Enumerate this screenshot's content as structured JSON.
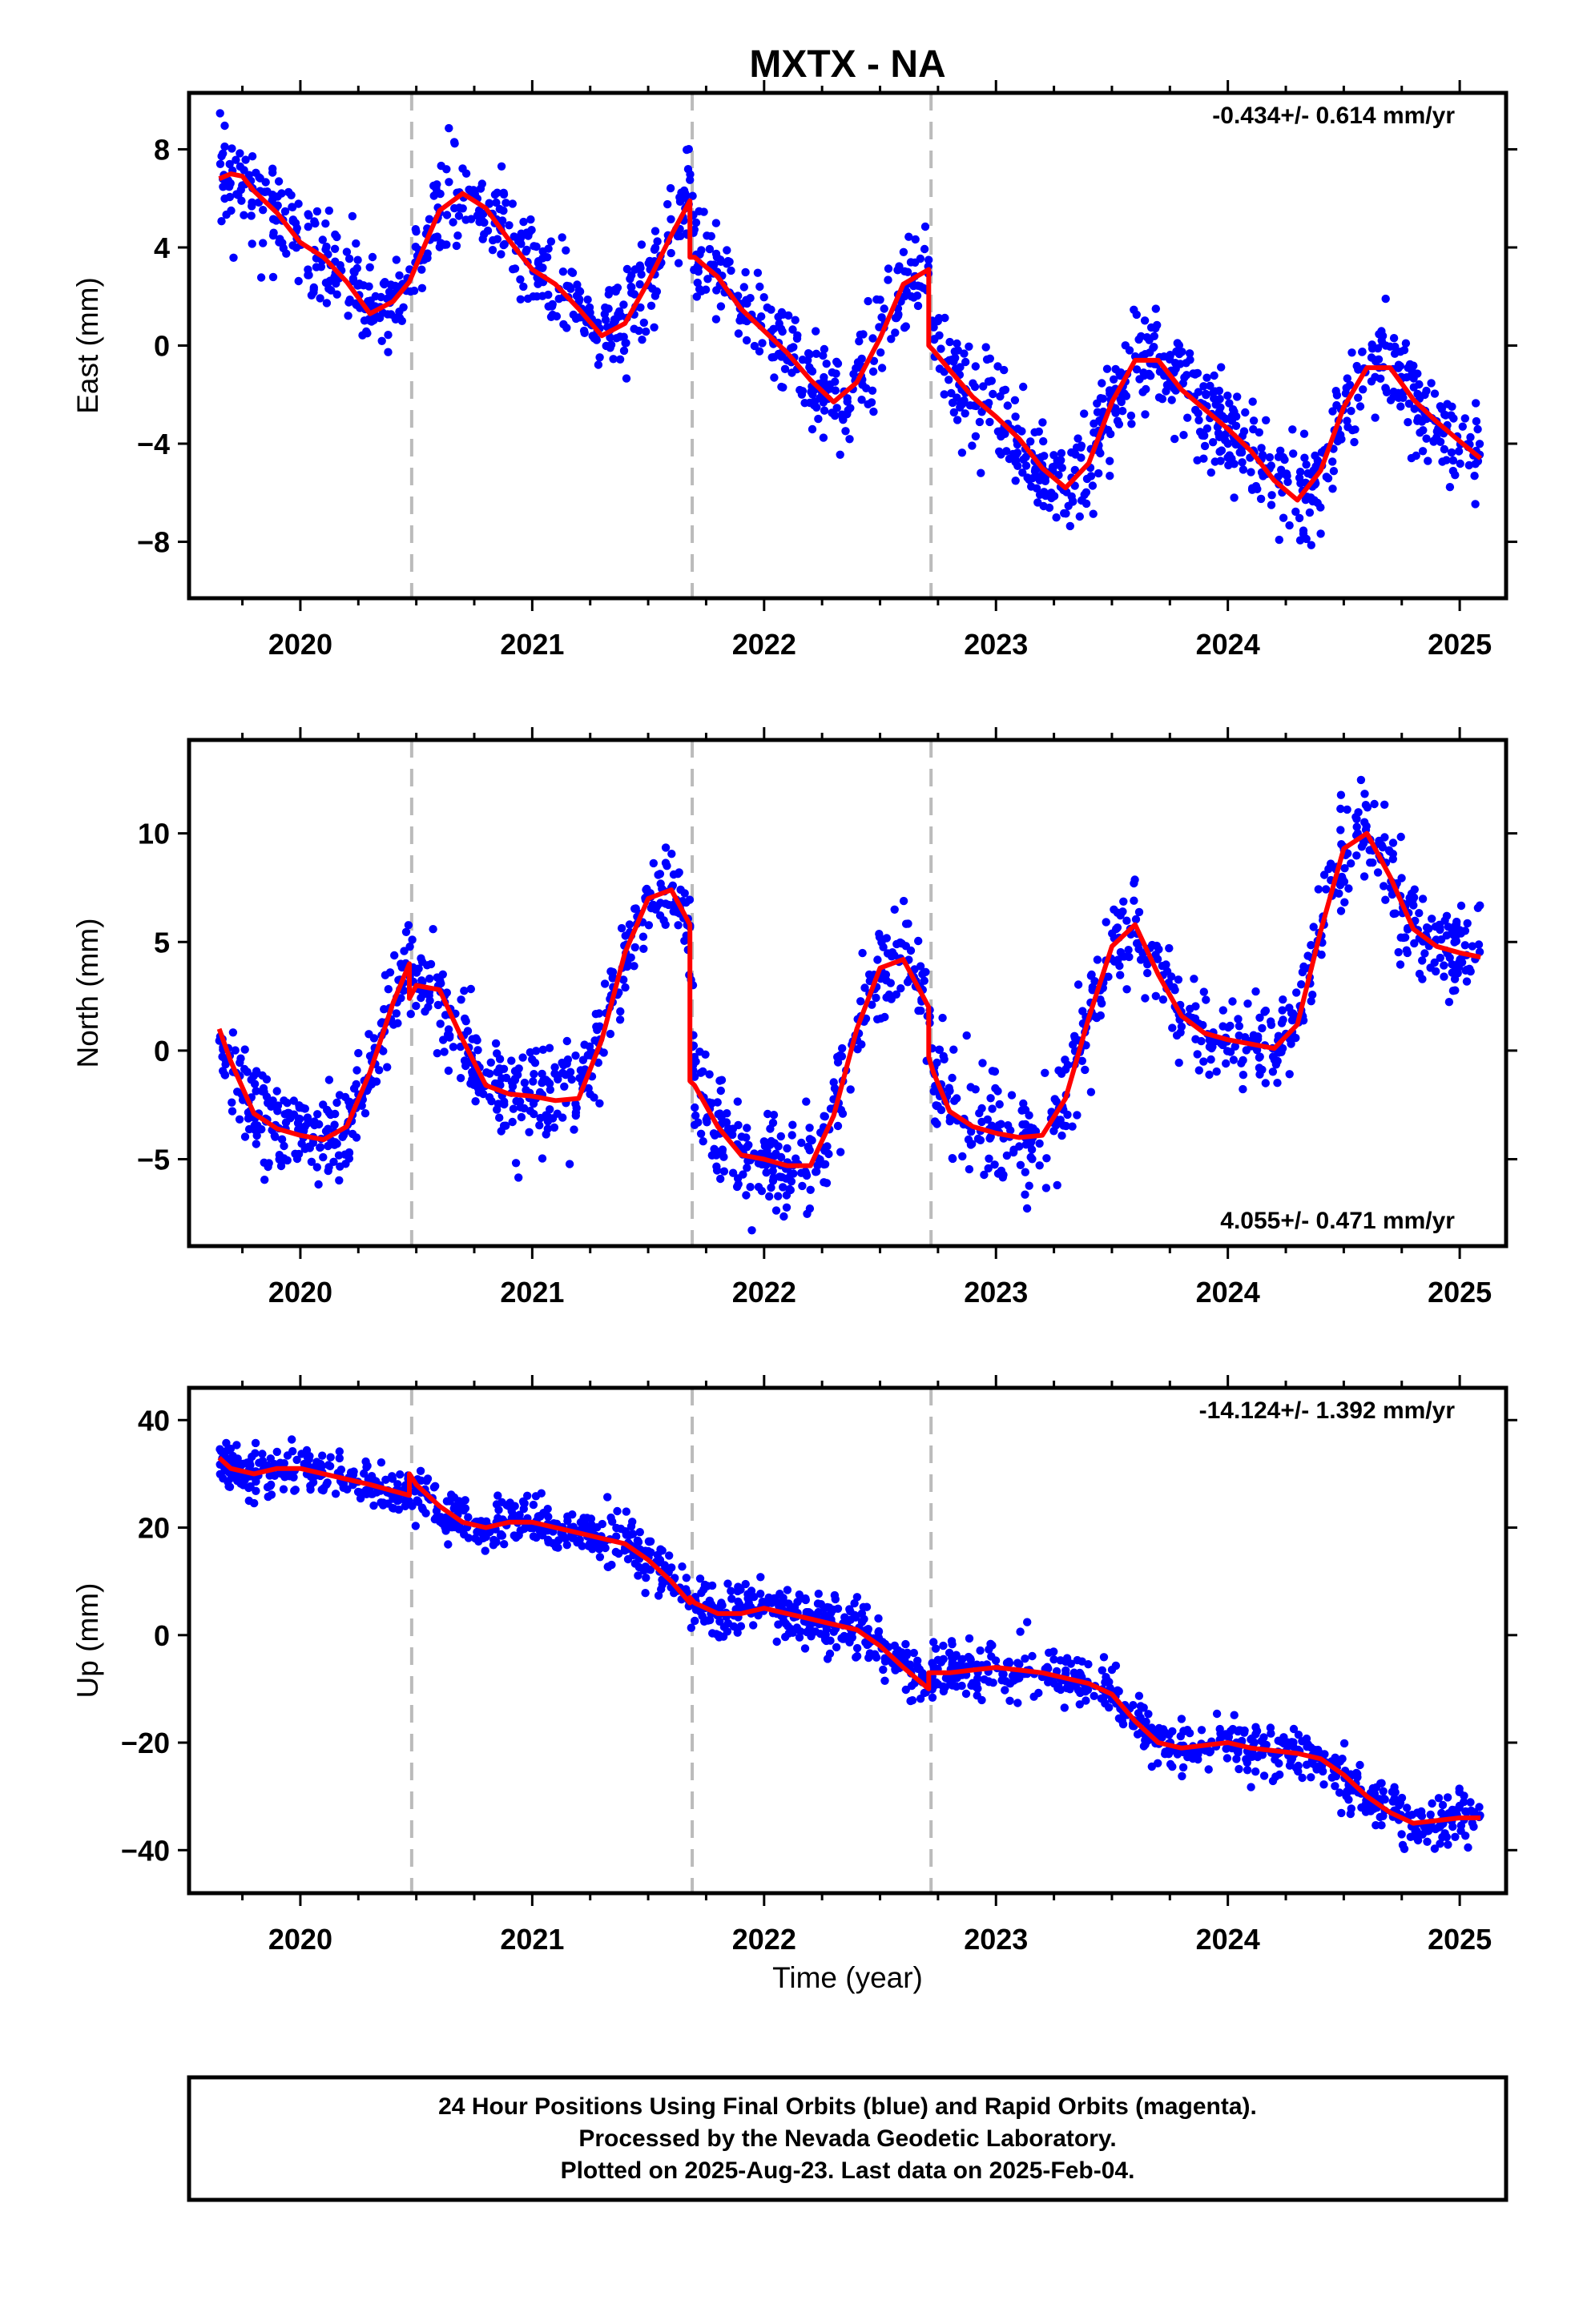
{
  "title": "MXTX - NA",
  "xlabel": "Time (year)",
  "footer": {
    "line1": "24 Hour Positions Using Final Orbits (blue) and Rapid Orbits (magenta).",
    "line2": "Processed by the Nevada Geodetic Laboratory.",
    "line3": "Plotted on 2025-Aug-23. Last data on 2025-Feb-04."
  },
  "colors": {
    "points": "#0000ff",
    "model": "#ff0000",
    "breaks": "#bbbbbb",
    "frame": "#000000"
  },
  "chart_data": [
    {
      "type": "scatter",
      "component": "East",
      "ylabel": "East (mm)",
      "xlim": [
        2019.52,
        2025.2
      ],
      "ylim": [
        -10.3,
        10.3
      ],
      "yticks": [
        8,
        4,
        0,
        -4,
        -8
      ],
      "xticks": [
        2020,
        2021,
        2022,
        2023,
        2024,
        2025
      ],
      "rate_text": "-0.434+/- 0.614 mm/yr",
      "rate_position": "top-right",
      "breaks": [
        2020.48,
        2021.69,
        2022.72
      ],
      "point_color": "#0000ff",
      "model_color": "#ff0000",
      "series": [
        {
          "name": "Final Orbits (blue)",
          "style": "scatter",
          "x": [
            2019.65,
            2019.7,
            2019.75,
            2019.8,
            2019.9,
            2020.0,
            2020.1,
            2020.2,
            2020.3,
            2020.4,
            2020.47,
            2020.55,
            2020.6,
            2020.7,
            2020.8,
            2020.9,
            2021.0,
            2021.1,
            2021.2,
            2021.3,
            2021.4,
            2021.5,
            2021.6,
            2021.68,
            2021.7,
            2021.8,
            2021.9,
            2022.0,
            2022.1,
            2022.2,
            2022.3,
            2022.4,
            2022.5,
            2022.6,
            2022.71,
            2022.73,
            2022.8,
            2022.9,
            2023.0,
            2023.1,
            2023.2,
            2023.3,
            2023.4,
            2023.5,
            2023.6,
            2023.7,
            2023.8,
            2023.9,
            2024.0,
            2024.1,
            2024.2,
            2024.3,
            2024.4,
            2024.5,
            2024.6,
            2024.7,
            2024.8,
            2024.9,
            2025.0,
            2025.09
          ],
          "y": [
            6.8,
            7.0,
            6.9,
            6.3,
            5.4,
            4.2,
            3.6,
            2.6,
            1.3,
            1.8,
            2.6,
            4.4,
            5.5,
            6.2,
            5.6,
            4.3,
            3.1,
            2.5,
            1.5,
            0.4,
            0.9,
            2.6,
            4.5,
            5.9,
            3.6,
            2.8,
            1.5,
            0.6,
            -0.3,
            -1.4,
            -2.3,
            -1.5,
            0.3,
            2.5,
            3.1,
            0.0,
            -1.0,
            -2.1,
            -2.9,
            -3.8,
            -5.0,
            -5.8,
            -4.8,
            -2.3,
            -0.6,
            -0.6,
            -1.8,
            -2.6,
            -3.4,
            -4.3,
            -5.5,
            -6.3,
            -5.1,
            -2.5,
            -0.9,
            -0.9,
            -2.2,
            -3.1,
            -3.9,
            -4.6
          ]
        },
        {
          "name": "model",
          "style": "line",
          "x": [
            2019.65,
            2019.7,
            2019.75,
            2019.8,
            2019.9,
            2020.0,
            2020.1,
            2020.2,
            2020.3,
            2020.4,
            2020.47,
            2020.55,
            2020.6,
            2020.7,
            2020.8,
            2020.9,
            2021.0,
            2021.1,
            2021.2,
            2021.3,
            2021.4,
            2021.5,
            2021.6,
            2021.68,
            2021.68,
            2021.7,
            2021.8,
            2021.9,
            2022.0,
            2022.1,
            2022.2,
            2022.3,
            2022.4,
            2022.5,
            2022.6,
            2022.71,
            2022.71,
            2022.73,
            2022.8,
            2022.9,
            2023.0,
            2023.1,
            2023.2,
            2023.3,
            2023.4,
            2023.5,
            2023.6,
            2023.7,
            2023.8,
            2023.9,
            2024.0,
            2024.1,
            2024.2,
            2024.3,
            2024.4,
            2024.5,
            2024.6,
            2024.7,
            2024.8,
            2024.9,
            2025.0,
            2025.09
          ],
          "y": [
            6.8,
            7.0,
            6.9,
            6.3,
            5.4,
            4.2,
            3.6,
            2.6,
            1.3,
            1.8,
            2.6,
            4.4,
            5.5,
            6.2,
            5.6,
            4.3,
            3.1,
            2.5,
            1.5,
            0.4,
            0.9,
            2.6,
            4.5,
            5.9,
            3.6,
            3.6,
            2.8,
            1.5,
            0.6,
            -0.3,
            -1.4,
            -2.3,
            -1.5,
            0.3,
            2.5,
            3.1,
            0.0,
            -0.2,
            -1.0,
            -2.1,
            -2.9,
            -3.8,
            -5.0,
            -5.8,
            -4.8,
            -2.3,
            -0.6,
            -0.6,
            -1.8,
            -2.6,
            -3.4,
            -4.3,
            -5.5,
            -6.3,
            -5.1,
            -2.5,
            -0.9,
            -0.9,
            -2.2,
            -3.1,
            -3.9,
            -4.6
          ]
        }
      ]
    },
    {
      "type": "scatter",
      "component": "North",
      "ylabel": "North (mm)",
      "xlim": [
        2019.52,
        2025.2
      ],
      "ylim": [
        -9.0,
        14.3
      ],
      "yticks": [
        10,
        5,
        0,
        -5
      ],
      "xticks": [
        2020,
        2021,
        2022,
        2023,
        2024,
        2025
      ],
      "rate_text": "4.055+/- 0.471 mm/yr",
      "rate_position": "bottom-right",
      "breaks": [
        2020.48,
        2021.69,
        2022.72
      ],
      "point_color": "#0000ff",
      "model_color": "#ff0000",
      "series": [
        {
          "name": "Final Orbits (blue)",
          "style": "scatter",
          "x": [
            2019.65,
            2019.7,
            2019.8,
            2019.9,
            2020.0,
            2020.1,
            2020.2,
            2020.3,
            2020.4,
            2020.47,
            2020.5,
            2020.6,
            2020.7,
            2020.8,
            2020.9,
            2021.0,
            2021.1,
            2021.2,
            2021.3,
            2021.4,
            2021.5,
            2021.6,
            2021.68,
            2021.7,
            2021.8,
            2021.9,
            2022.0,
            2022.1,
            2022.2,
            2022.3,
            2022.4,
            2022.5,
            2022.6,
            2022.71,
            2022.73,
            2022.8,
            2022.9,
            2023.0,
            2023.1,
            2023.2,
            2023.3,
            2023.4,
            2023.5,
            2023.6,
            2023.7,
            2023.8,
            2023.9,
            2024.0,
            2024.1,
            2024.2,
            2024.3,
            2024.4,
            2024.5,
            2024.6,
            2024.7,
            2024.8,
            2024.9,
            2025.0,
            2025.09
          ],
          "y": [
            1.0,
            -0.5,
            -2.9,
            -3.6,
            -3.9,
            -4.1,
            -3.5,
            -1.0,
            2.2,
            4.0,
            3.0,
            2.8,
            0.5,
            -1.6,
            -2.0,
            -2.1,
            -2.3,
            -2.2,
            0.5,
            4.5,
            7.0,
            7.4,
            5.8,
            -1.4,
            -3.5,
            -4.8,
            -5.0,
            -5.3,
            -5.3,
            -3.0,
            1.0,
            3.8,
            4.2,
            2.0,
            -1.0,
            -2.8,
            -3.5,
            -3.8,
            -4.0,
            -3.9,
            -2.2,
            1.5,
            4.8,
            5.8,
            3.5,
            1.6,
            0.8,
            0.5,
            0.3,
            0.1,
            1.2,
            5.5,
            9.3,
            10.0,
            8.0,
            5.6,
            4.8,
            4.5,
            4.3
          ]
        },
        {
          "name": "model",
          "style": "line",
          "x": [
            2019.65,
            2019.7,
            2019.8,
            2019.9,
            2020.0,
            2020.1,
            2020.2,
            2020.3,
            2020.4,
            2020.47,
            2020.47,
            2020.5,
            2020.6,
            2020.7,
            2020.8,
            2020.9,
            2021.0,
            2021.1,
            2021.2,
            2021.3,
            2021.4,
            2021.5,
            2021.6,
            2021.68,
            2021.68,
            2021.7,
            2021.8,
            2021.9,
            2022.0,
            2022.1,
            2022.2,
            2022.3,
            2022.4,
            2022.5,
            2022.6,
            2022.71,
            2022.71,
            2022.73,
            2022.8,
            2022.9,
            2023.0,
            2023.1,
            2023.2,
            2023.3,
            2023.4,
            2023.5,
            2023.6,
            2023.7,
            2023.8,
            2023.9,
            2024.0,
            2024.1,
            2024.2,
            2024.3,
            2024.4,
            2024.5,
            2024.6,
            2024.7,
            2024.8,
            2024.9,
            2025.0,
            2025.09
          ],
          "y": [
            1.0,
            -0.5,
            -2.9,
            -3.6,
            -3.9,
            -4.1,
            -3.5,
            -1.0,
            2.2,
            4.0,
            2.4,
            3.0,
            2.8,
            0.5,
            -1.6,
            -2.0,
            -2.1,
            -2.3,
            -2.2,
            0.5,
            4.5,
            7.0,
            7.4,
            5.8,
            -1.4,
            -1.6,
            -3.5,
            -4.8,
            -5.0,
            -5.3,
            -5.3,
            -3.0,
            1.0,
            3.8,
            4.2,
            2.0,
            -0.3,
            -1.0,
            -2.8,
            -3.5,
            -3.8,
            -4.0,
            -3.9,
            -2.2,
            1.5,
            4.8,
            5.8,
            3.5,
            1.6,
            0.8,
            0.5,
            0.3,
            0.1,
            1.2,
            5.5,
            9.3,
            10.0,
            8.0,
            5.6,
            4.8,
            4.5,
            4.3
          ]
        }
      ]
    },
    {
      "type": "scatter",
      "component": "Up",
      "ylabel": "Up (mm)",
      "xlim": [
        2019.52,
        2025.2
      ],
      "ylim": [
        -48.0,
        46.0
      ],
      "yticks": [
        40,
        20,
        0,
        -20,
        -40
      ],
      "xticks": [
        2020,
        2021,
        2022,
        2023,
        2024,
        2025
      ],
      "rate_text": "-14.124+/- 1.392 mm/yr",
      "rate_position": "top-right",
      "breaks": [
        2020.48,
        2021.69,
        2022.72
      ],
      "point_color": "#0000ff",
      "model_color": "#ff0000",
      "series": [
        {
          "name": "Final Orbits (blue)",
          "style": "scatter",
          "x": [
            2019.65,
            2019.7,
            2019.8,
            2019.9,
            2020.0,
            2020.1,
            2020.2,
            2020.3,
            2020.47,
            2020.5,
            2020.6,
            2020.7,
            2020.8,
            2020.9,
            2021.0,
            2021.1,
            2021.2,
            2021.3,
            2021.4,
            2021.5,
            2021.6,
            2021.68,
            2021.7,
            2021.8,
            2021.9,
            2022.0,
            2022.1,
            2022.2,
            2022.3,
            2022.4,
            2022.5,
            2022.6,
            2022.71,
            2022.73,
            2022.8,
            2022.9,
            2023.0,
            2023.1,
            2023.2,
            2023.3,
            2023.4,
            2023.5,
            2023.6,
            2023.7,
            2023.8,
            2023.9,
            2024.0,
            2024.1,
            2024.2,
            2024.3,
            2024.4,
            2024.5,
            2024.6,
            2024.7,
            2024.8,
            2024.9,
            2025.0,
            2025.09
          ],
          "y": [
            33.0,
            31.0,
            30.0,
            31.0,
            31.0,
            30.0,
            29.0,
            28.0,
            26.0,
            28.0,
            24.0,
            21.0,
            20.0,
            21.0,
            21.0,
            20.0,
            19.0,
            18.0,
            17.0,
            14.0,
            10.0,
            6.0,
            6.0,
            4.0,
            4.0,
            5.0,
            4.0,
            3.0,
            2.0,
            1.0,
            -2.0,
            -6.0,
            -10.0,
            -7.0,
            -7.0,
            -6.5,
            -6.0,
            -6.5,
            -7.0,
            -8.0,
            -9.0,
            -11.0,
            -16.0,
            -20.0,
            -21.0,
            -20.5,
            -20.0,
            -21.0,
            -21.5,
            -22.0,
            -23.0,
            -26.0,
            -30.0,
            -33.0,
            -35.0,
            -34.5,
            -34.0,
            -34.0
          ]
        },
        {
          "name": "model",
          "style": "line",
          "x": [
            2019.65,
            2019.7,
            2019.8,
            2019.9,
            2020.0,
            2020.1,
            2020.2,
            2020.3,
            2020.47,
            2020.47,
            2020.5,
            2020.6,
            2020.7,
            2020.8,
            2020.9,
            2021.0,
            2021.1,
            2021.2,
            2021.3,
            2021.4,
            2021.5,
            2021.6,
            2021.68,
            2021.68,
            2021.7,
            2021.8,
            2021.9,
            2022.0,
            2022.1,
            2022.2,
            2022.3,
            2022.4,
            2022.5,
            2022.6,
            2022.71,
            2022.71,
            2022.73,
            2022.8,
            2022.9,
            2023.0,
            2023.1,
            2023.2,
            2023.3,
            2023.4,
            2023.5,
            2023.6,
            2023.7,
            2023.8,
            2023.9,
            2024.0,
            2024.1,
            2024.2,
            2024.3,
            2024.4,
            2024.5,
            2024.6,
            2024.7,
            2024.8,
            2024.9,
            2025.0,
            2025.09
          ],
          "y": [
            33.0,
            31.0,
            30.0,
            31.0,
            31.0,
            30.0,
            29.0,
            28.0,
            26.0,
            30.0,
            28.0,
            24.0,
            21.0,
            20.0,
            21.0,
            21.0,
            20.0,
            19.0,
            18.0,
            17.0,
            14.0,
            10.0,
            6.0,
            7.0,
            6.0,
            4.0,
            4.0,
            5.0,
            4.0,
            3.0,
            2.0,
            1.0,
            -2.0,
            -6.0,
            -10.0,
            -7.0,
            -7.0,
            -7.0,
            -6.5,
            -6.0,
            -6.5,
            -7.0,
            -8.0,
            -9.0,
            -11.0,
            -16.0,
            -20.0,
            -21.0,
            -20.5,
            -20.0,
            -21.0,
            -21.5,
            -22.0,
            -23.0,
            -26.0,
            -30.0,
            -33.0,
            -35.0,
            -34.5,
            -34.0,
            -34.0
          ]
        }
      ]
    }
  ]
}
